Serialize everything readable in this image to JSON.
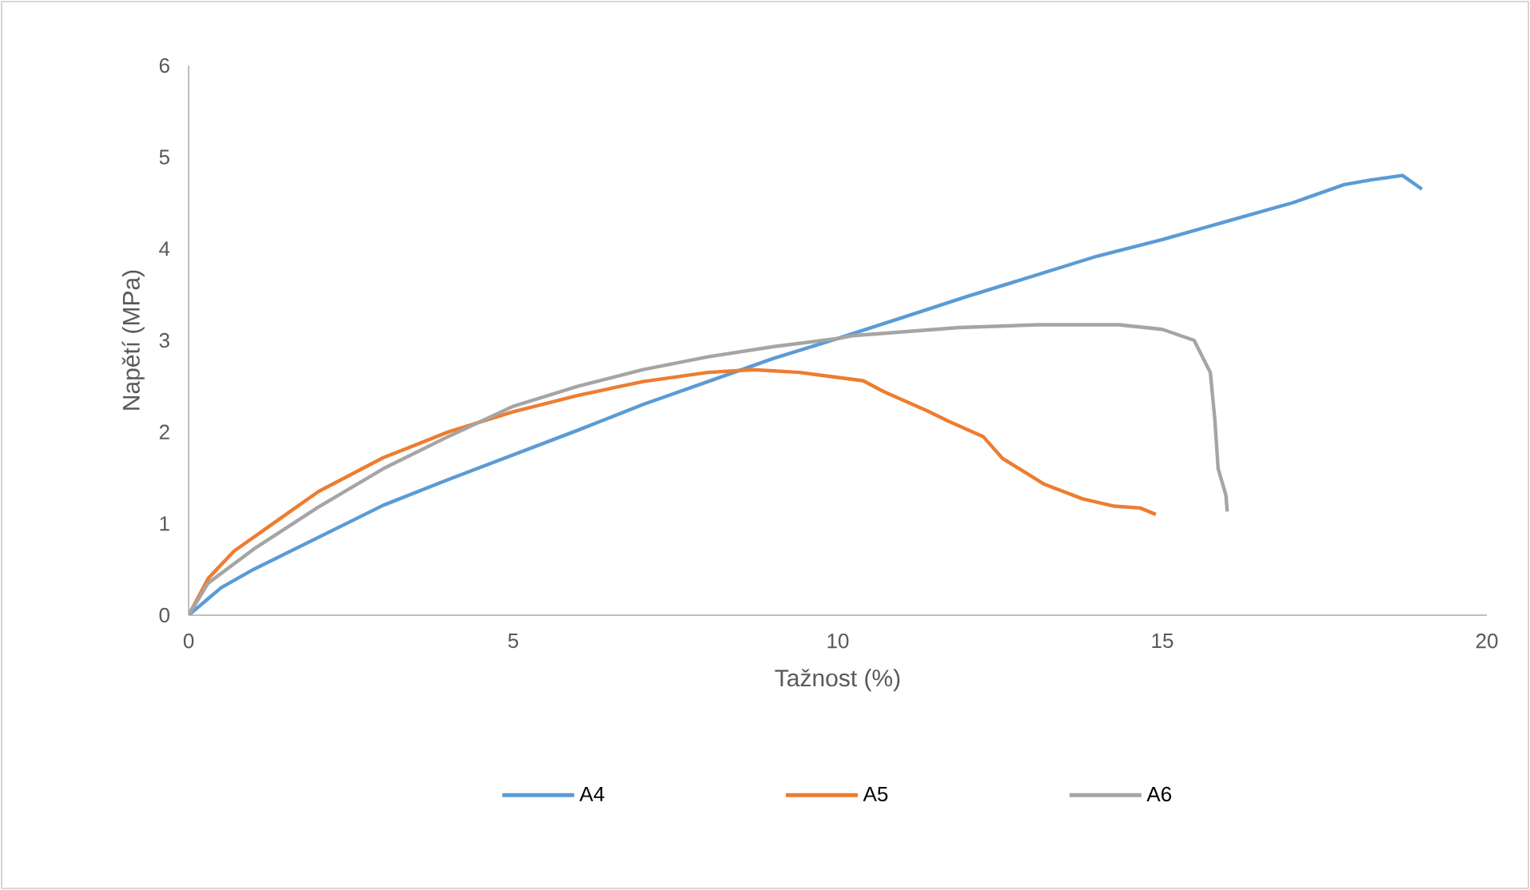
{
  "chart_data": {
    "type": "line",
    "xlabel": "Tažnost (%)",
    "ylabel": "Napětí (MPa)",
    "xlim": [
      0,
      20
    ],
    "ylim": [
      0,
      6
    ],
    "xticks": [
      0,
      5,
      10,
      15,
      20
    ],
    "yticks": [
      0,
      1,
      2,
      3,
      4,
      5,
      6
    ],
    "grid": false,
    "legend": "bottom",
    "marker": "none",
    "line_style": "solid",
    "series": [
      {
        "name": "A4",
        "color": "#5b9bd5",
        "x": [
          0,
          0.5,
          1,
          2,
          3,
          4,
          5,
          6,
          7,
          8,
          9,
          10,
          11,
          12,
          13,
          14,
          15,
          16,
          17,
          17.8,
          18.2,
          18.7,
          18.9,
          19.0
        ],
        "values": [
          0,
          0.3,
          0.5,
          0.85,
          1.2,
          1.48,
          1.75,
          2.02,
          2.3,
          2.55,
          2.8,
          3.02,
          3.25,
          3.48,
          3.7,
          3.92,
          4.1,
          4.3,
          4.5,
          4.7,
          4.75,
          4.8,
          4.7,
          4.65
        ]
      },
      {
        "name": "A5",
        "color": "#ed7d31",
        "x": [
          0,
          0.3,
          0.7,
          1.5,
          2,
          3,
          4,
          5,
          6,
          7,
          8,
          8.7,
          9.41,
          10.39,
          10.71,
          11.38,
          11.7,
          12.24,
          12.54,
          12.93,
          13.18,
          13.77,
          14.26,
          14.66,
          14.9
        ],
        "values": [
          0,
          0.4,
          0.7,
          1.1,
          1.35,
          1.72,
          2.0,
          2.22,
          2.4,
          2.55,
          2.65,
          2.68,
          2.65,
          2.56,
          2.44,
          2.23,
          2.12,
          1.95,
          1.71,
          1.54,
          1.43,
          1.27,
          1.19,
          1.17,
          1.1
        ]
      },
      {
        "name": "A6",
        "color": "#a5a5a5",
        "x": [
          0,
          0.3,
          1,
          2,
          3,
          4,
          5,
          6,
          7,
          8,
          9,
          10,
          10.22,
          11.87,
          13.1,
          14.33,
          15.0,
          15.49,
          15.74,
          15.81,
          15.86,
          15.98,
          16.0
        ],
        "values": [
          0,
          0.35,
          0.72,
          1.18,
          1.6,
          1.95,
          2.28,
          2.5,
          2.68,
          2.82,
          2.93,
          3.02,
          3.05,
          3.14,
          3.17,
          3.17,
          3.12,
          3.0,
          2.65,
          2.13,
          1.6,
          1.31,
          1.13
        ]
      }
    ]
  }
}
